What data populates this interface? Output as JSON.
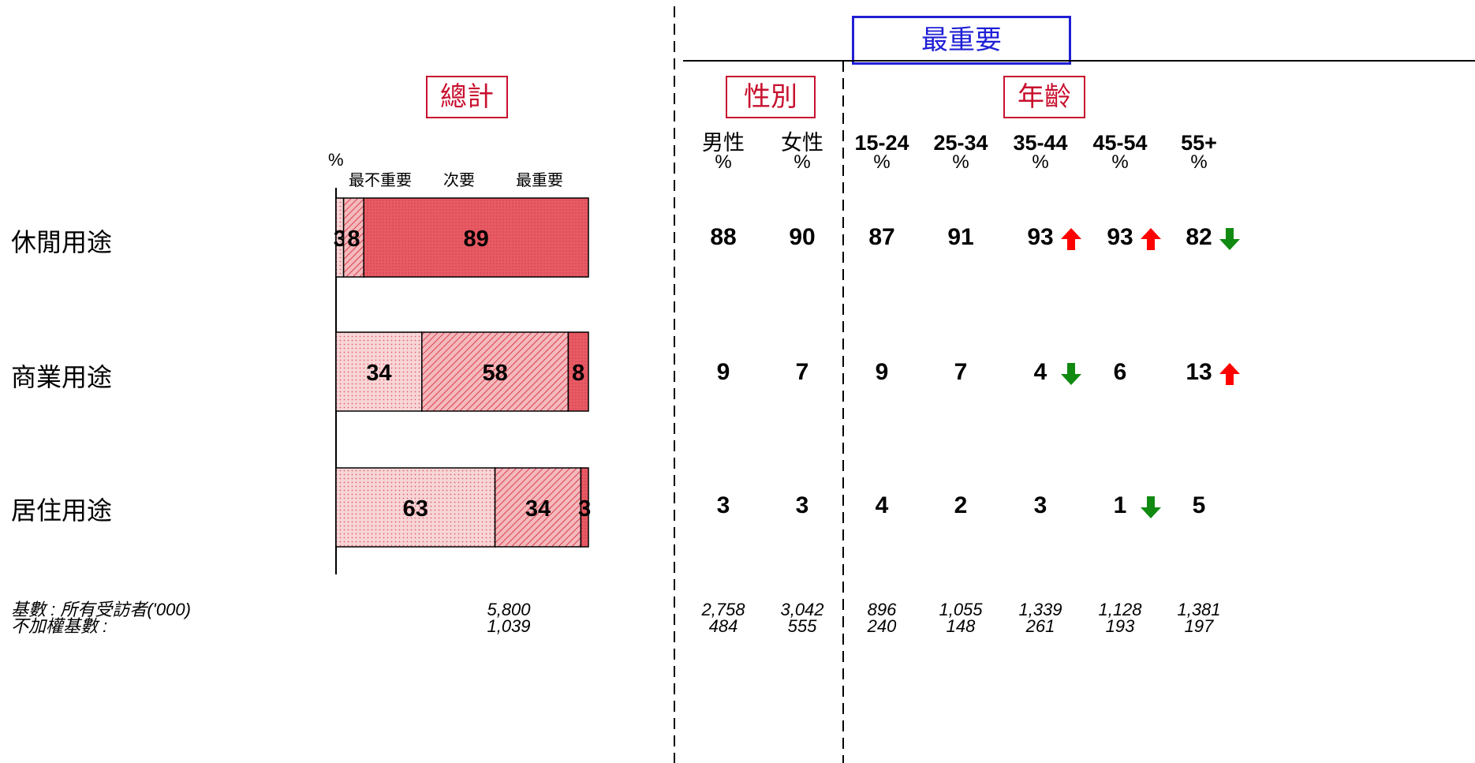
{
  "header": {
    "top_box": "最重要",
    "total_box": "總計",
    "gender_box": "性別",
    "age_box": "年齡"
  },
  "chart_axis": {
    "unit": "%",
    "legend": [
      "最不重要",
      "次要",
      "最重要"
    ]
  },
  "chart_data": {
    "type": "bar",
    "orientation": "horizontal",
    "stacked": true,
    "categories": [
      "休閒用途",
      "商業用途",
      "居住用途"
    ],
    "series": [
      {
        "name": "最不重要",
        "values": [
          3,
          34,
          63
        ],
        "color": "#f3b9bd"
      },
      {
        "name": "次要",
        "values": [
          8,
          58,
          34
        ],
        "color": "#ee8f96"
      },
      {
        "name": "最重要",
        "values": [
          89,
          8,
          3
        ],
        "color": "#e8555f"
      }
    ],
    "xlim": [
      0,
      100
    ]
  },
  "columns": [
    {
      "label": "男性",
      "unit": "%"
    },
    {
      "label": "女性",
      "unit": "%"
    },
    {
      "label": "15-24",
      "unit": "%"
    },
    {
      "label": "25-34",
      "unit": "%"
    },
    {
      "label": "35-44",
      "unit": "%"
    },
    {
      "label": "45-54",
      "unit": "%"
    },
    {
      "label": "55+",
      "unit": "%"
    }
  ],
  "table_rows": [
    {
      "values": [
        "88",
        "90",
        "87",
        "91",
        "93",
        "93",
        "82"
      ],
      "arrows": [
        "",
        "",
        "",
        "",
        "up",
        "up",
        "down"
      ]
    },
    {
      "values": [
        "9",
        "7",
        "9",
        "7",
        "4",
        "6",
        "13"
      ],
      "arrows": [
        "",
        "",
        "",
        "",
        "down",
        "",
        "up"
      ]
    },
    {
      "values": [
        "3",
        "3",
        "4",
        "2",
        "3",
        "1",
        "5"
      ],
      "arrows": [
        "",
        "",
        "",
        "",
        "",
        "down",
        ""
      ]
    }
  ],
  "arrow_colors": {
    "up": "#ff0000",
    "down": "#118a11"
  },
  "footer": {
    "base_label": "基數 : 所有受訪者('000)",
    "unweighted_label": "不加權基數 :",
    "total_base": "5,800",
    "total_unweighted": "1,039",
    "bases": [
      "2,758",
      "3,042",
      "896",
      "1,055",
      "1,339",
      "1,128",
      "1,381"
    ],
    "unweighted": [
      "484",
      "555",
      "240",
      "148",
      "261",
      "193",
      "197"
    ]
  }
}
